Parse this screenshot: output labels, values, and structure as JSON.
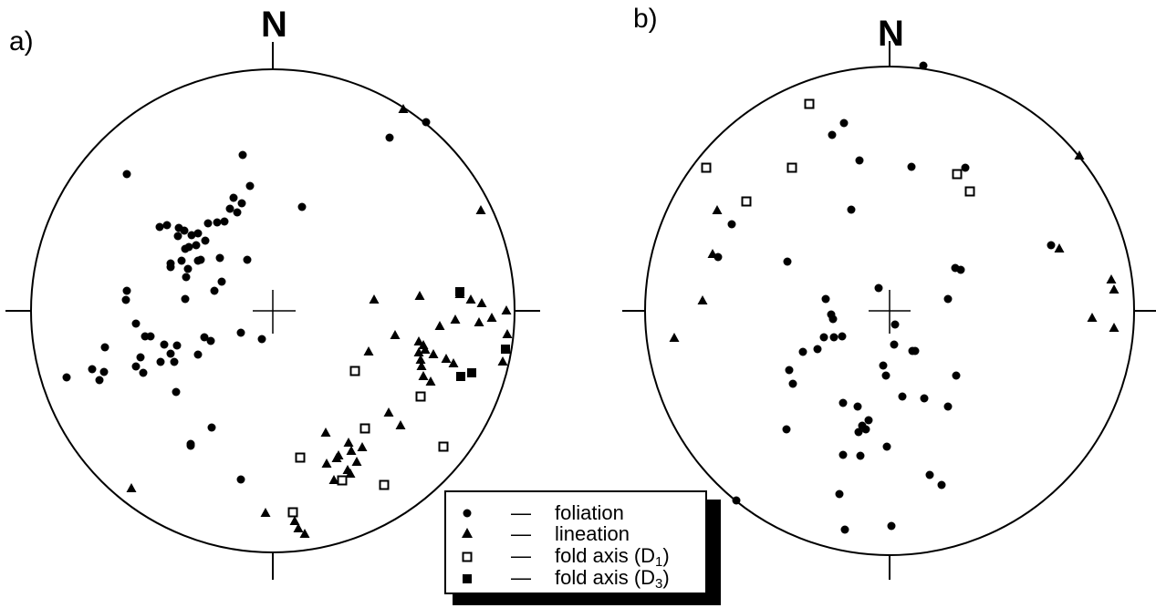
{
  "panels": [
    {
      "label": "a)",
      "north": "N",
      "points": {
        "foliation": [
          [
            -160,
            -150
          ],
          [
            -33,
            -171
          ],
          [
            -25,
            -137
          ],
          [
            -43,
            -124
          ],
          [
            -34,
            -118
          ],
          [
            -47,
            -112
          ],
          [
            -61,
            -97
          ],
          [
            -39,
            -108
          ],
          [
            -53,
            -98
          ],
          [
            -71,
            -96
          ],
          [
            -82,
            -85
          ],
          [
            -89,
            -83
          ],
          [
            -103,
            -91
          ],
          [
            -97,
            -88
          ],
          [
            -104,
            -82
          ],
          [
            -116,
            -94
          ],
          [
            -124,
            -92
          ],
          [
            -74,
            -77
          ],
          [
            -84,
            -72
          ],
          [
            -92,
            -70
          ],
          [
            -96,
            -68
          ],
          [
            -79,
            -56
          ],
          [
            -58,
            -58
          ],
          [
            -112,
            -52
          ],
          [
            -100,
            -55
          ],
          [
            -28,
            -56
          ],
          [
            -93,
            -46
          ],
          [
            -82,
            -55
          ],
          [
            -112,
            -48
          ],
          [
            -95,
            -37
          ],
          [
            -56,
            -32
          ],
          [
            -64,
            -22
          ],
          [
            -160,
            -22
          ],
          [
            -161,
            -12
          ],
          [
            -96,
            -13
          ],
          [
            -150,
            14
          ],
          [
            -35,
            24
          ],
          [
            -134,
            28
          ],
          [
            -140,
            28
          ],
          [
            -75,
            29
          ],
          [
            -68,
            33
          ],
          [
            -119,
            37
          ],
          [
            -105,
            38
          ],
          [
            -184,
            40
          ],
          [
            -145,
            51
          ],
          [
            -112,
            47
          ],
          [
            -82,
            48
          ],
          [
            -150,
            61
          ],
          [
            -108,
            56
          ],
          [
            -123,
            56
          ],
          [
            -198,
            64
          ],
          [
            -185,
            67
          ],
          [
            -142,
            68
          ],
          [
            -190,
            76
          ],
          [
            -226,
            73
          ],
          [
            -106,
            89
          ],
          [
            -67,
            128
          ],
          [
            -90,
            146
          ],
          [
            -90,
            148
          ],
          [
            -35,
            185
          ],
          [
            32,
            -114
          ],
          [
            -12,
            31
          ],
          [
            128,
            -190
          ],
          [
            168,
            -207
          ]
        ],
        "lineation": [
          [
            143,
            -221
          ],
          [
            228,
            -110
          ],
          [
            111,
            -12
          ],
          [
            161,
            -16
          ],
          [
            205,
            -18
          ],
          [
            229,
            -8
          ],
          [
            217,
            -12
          ],
          [
            240,
            8
          ],
          [
            256,
            0
          ],
          [
            183,
            17
          ],
          [
            134,
            27
          ],
          [
            257,
            26
          ],
          [
            200,
            10
          ],
          [
            226,
            13
          ],
          [
            105,
            45
          ],
          [
            160,
            34
          ],
          [
            165,
            38
          ],
          [
            160,
            46
          ],
          [
            176,
            48
          ],
          [
            162,
            54
          ],
          [
            167,
            43
          ],
          [
            190,
            53
          ],
          [
            163,
            61
          ],
          [
            165,
            72
          ],
          [
            173,
            78
          ],
          [
            252,
            56
          ],
          [
            198,
            58
          ],
          [
            127,
            112
          ],
          [
            140,
            126
          ],
          [
            58,
            134
          ],
          [
            83,
            145
          ],
          [
            98,
            150
          ],
          [
            86,
            154
          ],
          [
            72,
            159
          ],
          [
            82,
            175
          ],
          [
            67,
            186
          ],
          [
            85,
            179
          ],
          [
            92,
            166
          ],
          [
            59,
            168
          ],
          [
            70,
            162
          ],
          [
            -155,
            195
          ],
          [
            -8,
            222
          ],
          [
            24,
            231
          ],
          [
            28,
            239
          ],
          [
            35,
            245
          ]
        ],
        "fold_axis_d1": [
          [
            90,
            66
          ],
          [
            162,
            94
          ],
          [
            101,
            129
          ],
          [
            30,
            161
          ],
          [
            187,
            149
          ],
          [
            76,
            186
          ],
          [
            122,
            191
          ],
          [
            22,
            221
          ]
        ],
        "fold_axis_d3": [
          [
            205,
            -21
          ],
          [
            255,
            42
          ],
          [
            218,
            68
          ],
          [
            206,
            72
          ]
        ]
      }
    },
    {
      "label": "b)",
      "north": "N",
      "points": {
        "foliation": [
          [
            37,
            -269
          ],
          [
            -50,
            -206
          ],
          [
            -63,
            -193
          ],
          [
            -33,
            -165
          ],
          [
            24,
            -158
          ],
          [
            83,
            -157
          ],
          [
            -42,
            -111
          ],
          [
            -173,
            -95
          ],
          [
            -188,
            -59
          ],
          [
            -112,
            -54
          ],
          [
            177,
            -72
          ],
          [
            72,
            -47
          ],
          [
            78,
            -45
          ],
          [
            -12,
            -25
          ],
          [
            -70,
            -13
          ],
          [
            64,
            -13
          ],
          [
            -64,
            4
          ],
          [
            -62,
            9
          ],
          [
            6,
            15
          ],
          [
            -52,
            28
          ],
          [
            -72,
            29
          ],
          [
            -61,
            29
          ],
          [
            -79,
            42
          ],
          [
            -95,
            45
          ],
          [
            25,
            44
          ],
          [
            5,
            37
          ],
          [
            -7,
            60
          ],
          [
            28,
            44
          ],
          [
            -110,
            65
          ],
          [
            -106,
            80
          ],
          [
            73,
            71
          ],
          [
            -4,
            71
          ],
          [
            14,
            94
          ],
          [
            38,
            96
          ],
          [
            64,
            105
          ],
          [
            -51,
            101
          ],
          [
            -35,
            105
          ],
          [
            -23,
            120
          ],
          [
            -30,
            126
          ],
          [
            -26,
            130
          ],
          [
            -34,
            133
          ],
          [
            -113,
            130
          ],
          [
            -3,
            149
          ],
          [
            -51,
            158
          ],
          [
            -32,
            159
          ],
          [
            44,
            180
          ],
          [
            57,
            191
          ],
          [
            -55,
            201
          ],
          [
            -168,
            208
          ],
          [
            2,
            236
          ],
          [
            -49,
            240
          ]
        ],
        "lineation": [
          [
            208,
            -170
          ],
          [
            -189,
            -110
          ],
          [
            -194,
            -62
          ],
          [
            -205,
            -11
          ],
          [
            -236,
            30
          ],
          [
            186,
            -68
          ],
          [
            243,
            -34
          ],
          [
            246,
            -23
          ],
          [
            222,
            8
          ],
          [
            246,
            19
          ]
        ],
        "fold_axis_d1": [
          [
            -88,
            -227
          ],
          [
            -201,
            -157
          ],
          [
            -107,
            -157
          ],
          [
            -157,
            -120
          ],
          [
            74,
            -150
          ],
          [
            88,
            -131
          ]
        ],
        "fold_axis_d3": []
      }
    }
  ],
  "legend": {
    "items": [
      {
        "symbol": "foliation-circle",
        "dash": "—",
        "label": "foliation"
      },
      {
        "symbol": "lineation-triangle",
        "dash": "—",
        "label": "lineation"
      },
      {
        "symbol": "fold-axis-d1-open-square",
        "dash": "—",
        "label": "fold axis (D",
        "sub": "1",
        "suffix": ")"
      },
      {
        "symbol": "fold-axis-d3-filled-square",
        "dash": "—",
        "label": "fold axis (D",
        "sub": "3",
        "suffix": ")"
      }
    ]
  }
}
